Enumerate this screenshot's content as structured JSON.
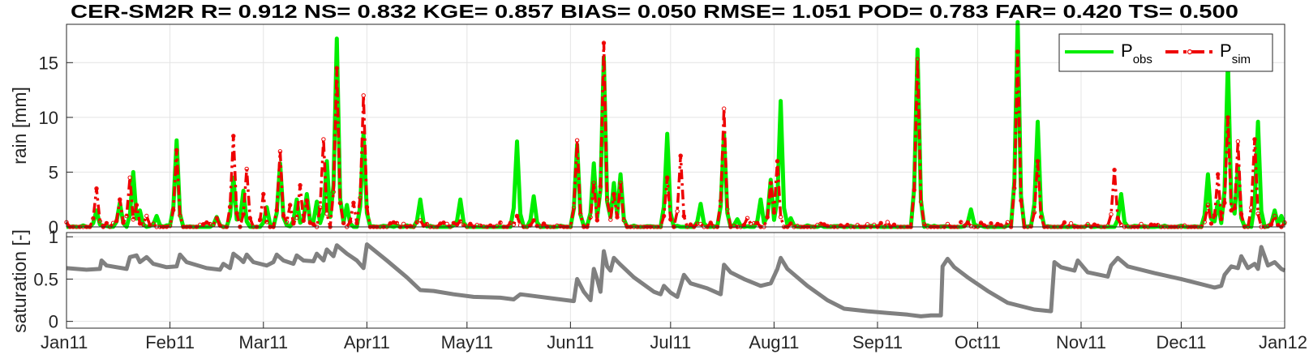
{
  "chart_data": {
    "title": "CER-SM2R  R= 0.912 NS= 0.832 KGE= 0.857 BIAS= 0.050 RMSE= 1.051 POD= 0.783 FAR= 0.420 TS= 0.500",
    "x_range": [
      "2011-01-01",
      "2012-01-01"
    ],
    "x_tick_dates": [
      "2011-01-01",
      "2011-02-01",
      "2011-03-01",
      "2011-04-01",
      "2011-05-01",
      "2011-06-01",
      "2011-07-01",
      "2011-08-01",
      "2011-09-01",
      "2011-10-01",
      "2011-11-01",
      "2011-12-01",
      "2012-01-01"
    ],
    "x_tick_labels": [
      "Jan11",
      "Feb11",
      "Mar11",
      "Apr11",
      "May11",
      "Jun11",
      "Jul11",
      "Aug11",
      "Sep11",
      "Oct11",
      "Nov11",
      "Dec11",
      "Jan12"
    ],
    "grid": true,
    "panels": [
      {
        "type": "line",
        "ylabel": "rain [mm]",
        "ylim": [
          0,
          18.5
        ],
        "yticks": [
          0,
          5,
          10,
          15
        ],
        "legend": "top-right",
        "series": [
          {
            "name": "obs",
            "color": "#00ee00",
            "style": "solid",
            "events": [
              [
                9,
                1.5
              ],
              [
                16,
                2.2
              ],
              [
                20,
                5.0
              ],
              [
                22,
                1.5
              ],
              [
                27,
                1.0
              ],
              [
                33,
                7.9
              ],
              [
                45,
                0.9
              ],
              [
                50,
                4.5
              ],
              [
                53,
                3.3
              ],
              [
                60,
                1.8
              ],
              [
                64,
                5.8
              ],
              [
                69,
                2.5
              ],
              [
                72,
                3.0
              ],
              [
                75,
                2.3
              ],
              [
                78,
                6.0
              ],
              [
                81,
                17.2
              ],
              [
                84,
                2.0
              ],
              [
                89,
                8.5
              ],
              [
                106,
                2.5
              ],
              [
                118,
                2.5
              ],
              [
                135,
                7.8
              ],
              [
                140,
                2.8
              ],
              [
                153,
                7.5
              ],
              [
                158,
                5.8
              ],
              [
                161,
                15.5
              ],
              [
                164,
                4.0
              ],
              [
                166,
                4.8
              ],
              [
                180,
                8.5
              ],
              [
                190,
                2.1
              ],
              [
                197,
                8.5
              ],
              [
                201,
                0.7
              ],
              [
                208,
                2.5
              ],
              [
                211,
                4.3
              ],
              [
                214,
                11.5
              ],
              [
                217,
                0.8
              ],
              [
                255,
                16.2
              ],
              [
                271,
                1.6
              ],
              [
                285,
                18.7
              ],
              [
                291,
                9.6
              ],
              [
                316,
                3.0
              ],
              [
                342,
                4.8
              ],
              [
                345,
                2.3
              ],
              [
                348,
                15.1
              ],
              [
                351,
                5.5
              ],
              [
                357,
                9.6
              ],
              [
                362,
                1.5
              ],
              [
                364,
                1.0
              ]
            ]
          },
          {
            "name": "sim",
            "color": "#ee0000",
            "style": "dash-dot",
            "events": [
              [
                9,
                3.5
              ],
              [
                16,
                2.5
              ],
              [
                19,
                4.5
              ],
              [
                21,
                2.0
              ],
              [
                24,
                1.0
              ],
              [
                33,
                7.0
              ],
              [
                45,
                0.8
              ],
              [
                50,
                8.3
              ],
              [
                54,
                5.3
              ],
              [
                59,
                3.0
              ],
              [
                64,
                6.9
              ],
              [
                67,
                2.0
              ],
              [
                70,
                3.8
              ],
              [
                72,
                2.4
              ],
              [
                77,
                8.0
              ],
              [
                81,
                14.5
              ],
              [
                86,
                2.2
              ],
              [
                89,
                12.0
              ],
              [
                106,
                0.6
              ],
              [
                118,
                0.5
              ],
              [
                135,
                1.0
              ],
              [
                140,
                0.6
              ],
              [
                153,
                7.9
              ],
              [
                158,
                4.0
              ],
              [
                161,
                16.8
              ],
              [
                164,
                3.0
              ],
              [
                166,
                4.0
              ],
              [
                180,
                4.5
              ],
              [
                184,
                6.5
              ],
              [
                197,
                10.8
              ],
              [
                204,
                0.8
              ],
              [
                211,
                4.0
              ],
              [
                213,
                6.0
              ],
              [
                255,
                15.3
              ],
              [
                270,
                0.4
              ],
              [
                285,
                16.0
              ],
              [
                291,
                6.0
              ],
              [
                314,
                5.2
              ],
              [
                342,
                2.0
              ],
              [
                345,
                4.8
              ],
              [
                348,
                10.0
              ],
              [
                351,
                7.8
              ],
              [
                356,
                8.0
              ],
              [
                362,
                1.0
              ]
            ]
          }
        ]
      },
      {
        "type": "line",
        "ylabel": "saturation [-]",
        "ylim": [
          -0.08,
          1.05
        ],
        "yticks": [
          0,
          0.5,
          1
        ],
        "series": [
          {
            "name": "saturation",
            "color": "#808080",
            "points": [
              [
                0,
                0.63
              ],
              [
                6,
                0.61
              ],
              [
                10,
                0.62
              ],
              [
                10.5,
                0.72
              ],
              [
                12,
                0.66
              ],
              [
                18,
                0.62
              ],
              [
                19,
                0.76
              ],
              [
                21,
                0.78
              ],
              [
                22,
                0.7
              ],
              [
                24,
                0.76
              ],
              [
                26,
                0.68
              ],
              [
                30,
                0.64
              ],
              [
                33,
                0.65
              ],
              [
                34,
                0.79
              ],
              [
                36,
                0.7
              ],
              [
                42,
                0.63
              ],
              [
                46,
                0.61
              ],
              [
                47,
                0.68
              ],
              [
                49,
                0.63
              ],
              [
                50,
                0.8
              ],
              [
                52,
                0.74
              ],
              [
                53,
                0.7
              ],
              [
                54,
                0.79
              ],
              [
                56,
                0.7
              ],
              [
                60,
                0.66
              ],
              [
                62,
                0.7
              ],
              [
                63,
                0.79
              ],
              [
                65,
                0.72
              ],
              [
                68,
                0.68
              ],
              [
                69,
                0.78
              ],
              [
                71,
                0.72
              ],
              [
                74,
                0.71
              ],
              [
                75,
                0.8
              ],
              [
                77,
                0.72
              ],
              [
                78,
                0.85
              ],
              [
                80,
                0.77
              ],
              [
                81,
                0.9
              ],
              [
                84,
                0.8
              ],
              [
                87,
                0.72
              ],
              [
                89,
                0.63
              ],
              [
                90,
                0.91
              ],
              [
                96,
                0.72
              ],
              [
                102,
                0.52
              ],
              [
                106,
                0.37
              ],
              [
                110,
                0.36
              ],
              [
                116,
                0.32
              ],
              [
                122,
                0.29
              ],
              [
                130,
                0.28
              ],
              [
                134,
                0.26
              ],
              [
                136,
                0.32
              ],
              [
                140,
                0.3
              ],
              [
                146,
                0.27
              ],
              [
                152,
                0.24
              ],
              [
                153,
                0.5
              ],
              [
                155,
                0.35
              ],
              [
                157,
                0.25
              ],
              [
                158,
                0.62
              ],
              [
                159,
                0.5
              ],
              [
                160,
                0.35
              ],
              [
                161,
                0.83
              ],
              [
                162,
                0.65
              ],
              [
                163,
                0.6
              ],
              [
                164,
                0.75
              ],
              [
                166,
                0.67
              ],
              [
                170,
                0.52
              ],
              [
                176,
                0.35
              ],
              [
                178,
                0.32
              ],
              [
                179,
                0.42
              ],
              [
                181,
                0.34
              ],
              [
                183,
                0.29
              ],
              [
                185,
                0.55
              ],
              [
                187,
                0.45
              ],
              [
                192,
                0.39
              ],
              [
                196,
                0.32
              ],
              [
                197,
                0.67
              ],
              [
                199,
                0.58
              ],
              [
                203,
                0.5
              ],
              [
                208,
                0.42
              ],
              [
                211,
                0.45
              ],
              [
                213,
                0.62
              ],
              [
                214,
                0.75
              ],
              [
                216,
                0.62
              ],
              [
                222,
                0.42
              ],
              [
                228,
                0.25
              ],
              [
                233,
                0.15
              ],
              [
                240,
                0.12
              ],
              [
                246,
                0.1
              ],
              [
                252,
                0.08
              ],
              [
                256,
                0.06
              ],
              [
                259,
                0.07
              ],
              [
                262,
                0.07
              ],
              [
                262.5,
                0.65
              ],
              [
                264,
                0.74
              ],
              [
                266,
                0.64
              ],
              [
                270,
                0.52
              ],
              [
                276,
                0.36
              ],
              [
                282,
                0.22
              ],
              [
                290,
                0.14
              ],
              [
                295,
                0.12
              ],
              [
                296,
                0.7
              ],
              [
                298,
                0.64
              ],
              [
                302,
                0.6
              ],
              [
                303,
                0.72
              ],
              [
                306,
                0.58
              ],
              [
                312,
                0.53
              ],
              [
                313,
                0.66
              ],
              [
                315,
                0.75
              ],
              [
                318,
                0.65
              ],
              [
                326,
                0.57
              ],
              [
                334,
                0.5
              ],
              [
                340,
                0.44
              ],
              [
                344,
                0.4
              ],
              [
                346,
                0.42
              ],
              [
                347,
                0.55
              ],
              [
                349,
                0.65
              ],
              [
                351,
                0.63
              ],
              [
                352,
                0.77
              ],
              [
                354,
                0.63
              ],
              [
                356,
                0.68
              ],
              [
                357,
                0.62
              ],
              [
                358,
                0.88
              ],
              [
                360,
                0.66
              ],
              [
                362,
                0.7
              ],
              [
                364,
                0.62
              ],
              [
                365,
                0.6
              ]
            ]
          }
        ]
      }
    ]
  }
}
